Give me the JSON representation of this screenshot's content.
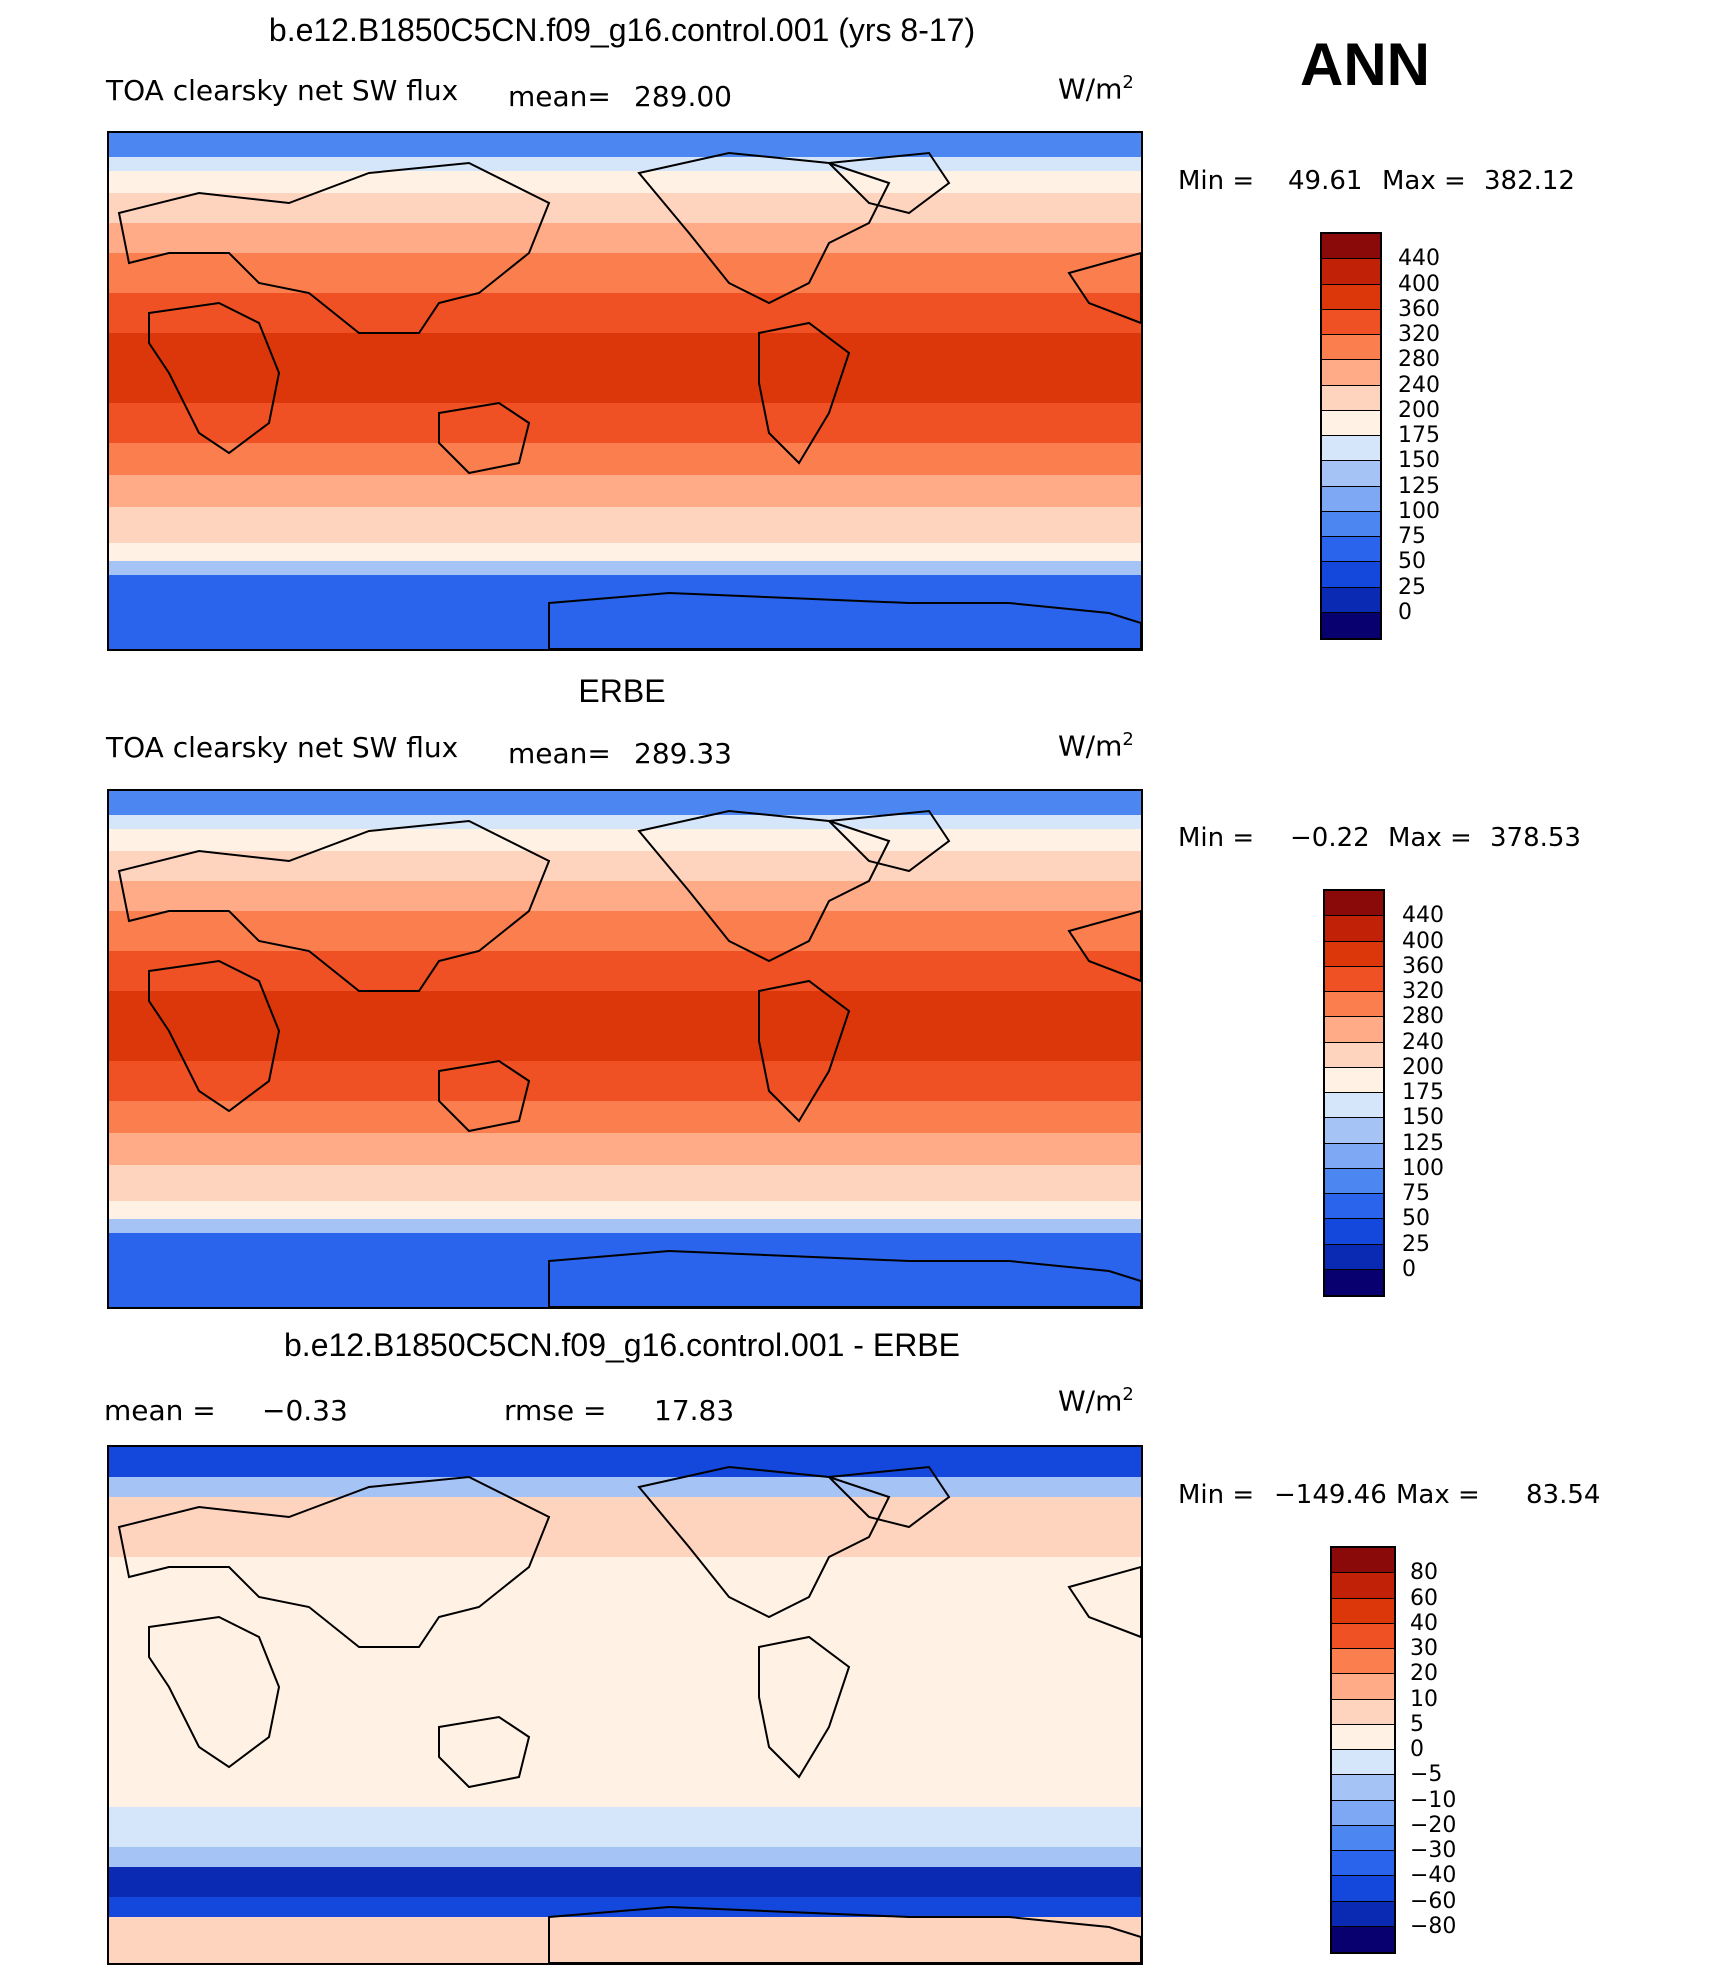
{
  "season": "ANN",
  "colors": {
    "abs": [
      "#08006e",
      "#0b2ab3",
      "#1448dc",
      "#2a64ec",
      "#4b86f1",
      "#7ea7f4",
      "#a6c3f6",
      "#d6e6fa",
      "#fff2e5",
      "#ffd4be",
      "#ffab87",
      "#fb7e4f",
      "#ef5024",
      "#dc360b",
      "#c12207",
      "#8a0a0a"
    ],
    "diff": [
      "#08006e",
      "#0b2ab3",
      "#1448dc",
      "#2a64ec",
      "#4b86f1",
      "#7ea7f4",
      "#a6c3f6",
      "#d6e6fa",
      "#fff2e5",
      "#ffd4be",
      "#ffab87",
      "#fb7e4f",
      "#ef5024",
      "#dc360b",
      "#c12207",
      "#8a0a0a"
    ]
  },
  "panels": [
    {
      "title": "b.e12.B1850C5CN.f09_g16.control.001 (yrs 8-17)",
      "variable": "TOA clearsky net SW flux",
      "mean_label": "mean=",
      "mean_value": "289.00",
      "units": "W/m",
      "units_sup": "2",
      "min_label": "Min =",
      "min_value": "49.61",
      "max_label": "Max =",
      "max_value": "382.12",
      "legend_ticks": [
        "440",
        "400",
        "360",
        "320",
        "280",
        "240",
        "200",
        "175",
        "150",
        "125",
        "100",
        "75",
        "50",
        "25",
        "0"
      ]
    },
    {
      "title": "ERBE",
      "variable": "TOA clearsky net SW flux",
      "mean_label": "mean=",
      "mean_value": "289.33",
      "units": "W/m",
      "units_sup": "2",
      "min_label": "Min =",
      "min_value": "−0.22",
      "max_label": "Max =",
      "max_value": "378.53",
      "legend_ticks": [
        "440",
        "400",
        "360",
        "320",
        "280",
        "240",
        "200",
        "175",
        "150",
        "125",
        "100",
        "75",
        "50",
        "25",
        "0"
      ]
    },
    {
      "title": "b.e12.B1850C5CN.f09_g16.control.001 - ERBE",
      "mean_label": "mean =",
      "mean_value": "−0.33",
      "rmse_label": "rmse =",
      "rmse_value": "17.83",
      "units": "W/m",
      "units_sup": "2",
      "min_label": "Min =",
      "min_value": "−149.46",
      "max_label": "Max =",
      "max_value": "83.54",
      "legend_ticks": [
        "80",
        "60",
        "40",
        "30",
        "20",
        "10",
        "5",
        "0",
        "−5",
        "−10",
        "−20",
        "−30",
        "−40",
        "−60",
        "−80"
      ]
    }
  ]
}
